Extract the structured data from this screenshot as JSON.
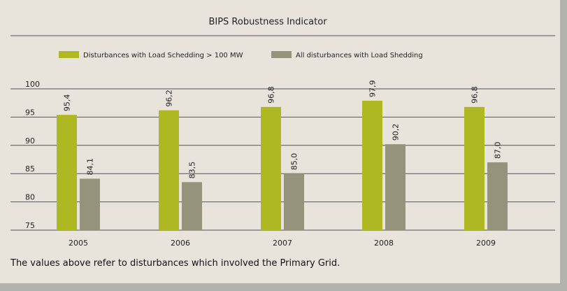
{
  "chart_data": {
    "type": "bar",
    "title": "BIPS Robustness Indicator",
    "categories": [
      "2005",
      "2006",
      "2007",
      "2008",
      "2009"
    ],
    "series": [
      {
        "name": "Disturbances with Load Schedding > 100 MW",
        "color": "#adb822",
        "values": [
          95.4,
          96.2,
          96.8,
          97.9,
          96.8
        ],
        "labels": [
          "95,4",
          "96,2",
          "96,8",
          "97,9",
          "96,8"
        ]
      },
      {
        "name": "All disturbances with Load Shedding",
        "color": "#96937c",
        "values": [
          84.1,
          83.5,
          85.0,
          90.2,
          87.0
        ],
        "labels": [
          "84,1",
          "83,5",
          "85,0",
          "90,2",
          "87,0"
        ]
      }
    ],
    "ylim": [
      75,
      100
    ],
    "yticks": [
      100,
      95,
      90,
      85,
      80,
      75
    ],
    "grid": true,
    "legend_position": "top-left"
  },
  "footnote": "The values above refer to disturbances which involved the Primary Grid."
}
